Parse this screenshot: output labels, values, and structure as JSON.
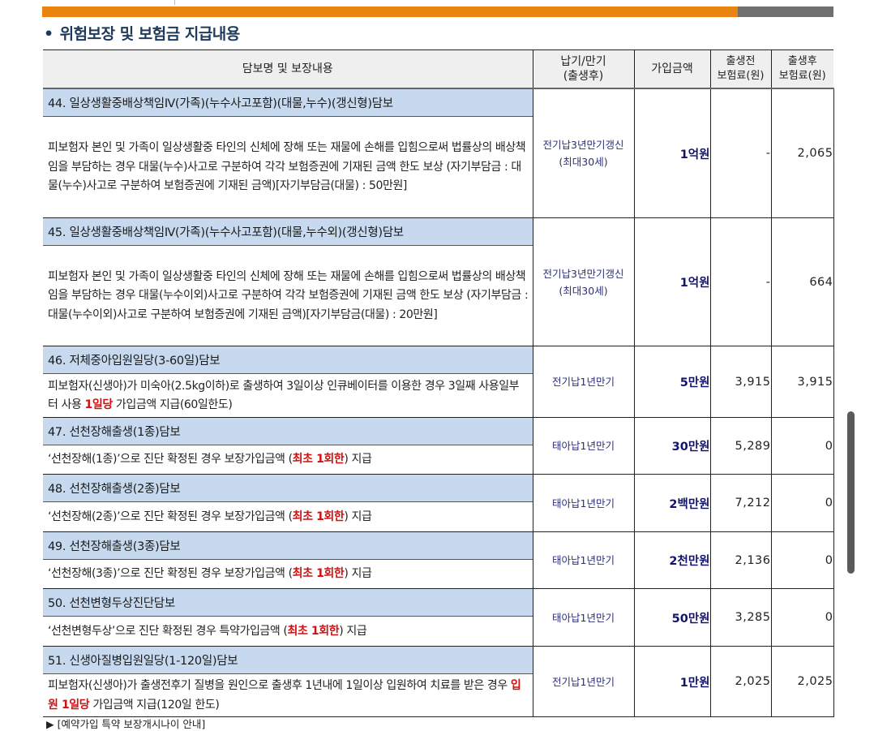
{
  "section_title": "위험보장 및 보험금 지급내용",
  "bullet": "•",
  "colors": {
    "accent_orange": "#e8840f",
    "bar_gray": "#6f6f6f",
    "name_row_bg": "#c7d9ee",
    "header_bg": "#efefef",
    "amount_text": "#12146b",
    "term_text": "#2b2f7a",
    "highlight_red": "#d01010"
  },
  "table": {
    "headers": {
      "coverage": "담보명 및 보장내용",
      "term_line1": "납기/만기",
      "term_line2": "(출생후)",
      "amount": "가입금액",
      "pre_birth_line1": "출생전",
      "pre_birth_line2": "보험료(원)",
      "post_birth_line1": "출생후",
      "post_birth_line2": "보험료(원)"
    },
    "rows": [
      {
        "name": "44. 일상생활중배상책임Ⅳ(가족)(누수사고포함)(대물,누수)(갱신형)담보",
        "desc_pre": "피보험자 본인 및 가족이 일상생활중 타인의 신체에 장해 또는 재물에 손해를 입힘으로써 법률상의 배상책임을 부담하는 경우 대물(누수)사고로 구분하여 각각 보험증권에 기재된 금액 한도 보상 (자기부담금 : 대물(누수)사고로 구분하여 보험증권에 기재된 금액)[자기부담금(대물) : 50만원]",
        "desc_red": "",
        "desc_post": "",
        "term_line1": "전기납3년만기갱신",
        "term_line2": "(최대30세)",
        "amount": "1억원",
        "pre_birth": "-",
        "post_birth": "2,065"
      },
      {
        "name": "45. 일상생활중배상책임Ⅳ(가족)(누수사고포함)(대물,누수외)(갱신형)담보",
        "desc_pre": "피보험자 본인 및 가족이 일상생활중 타인의 신체에 장해 또는 재물에 손해를 입힘으로써 법률상의 배상책임을 부담하는 경우 대물(누수이외)사고로 구분하여 각각 보험증권에 기재된 금액 한도 보상 (자기부담금 : 대물(누수이외)사고로 구분하여 보험증권에 기재된 금액)[자기부담금(대물) : 20만원]",
        "desc_red": "",
        "desc_post": "",
        "term_line1": "전기납3년만기갱신",
        "term_line2": "(최대30세)",
        "amount": "1억원",
        "pre_birth": "-",
        "post_birth": "664"
      },
      {
        "name": "46. 저체중아입원일당(3-60일)담보",
        "desc_pre": "피보험자(신생아)가 미숙아(2.5kg이하)로 출생하여 3일이상 인큐베이터를 이용한 경우 3일째 사용일부터 사용 ",
        "desc_red": "1일당",
        "desc_post": " 가입금액 지급(60일한도)",
        "term_line1": "전기납1년만기",
        "term_line2": "",
        "amount": "5만원",
        "pre_birth": "3,915",
        "post_birth": "3,915"
      },
      {
        "name": "47. 선천장해출생(1종)담보",
        "desc_pre": "‘선천장해(1종)’으로 진단 확정된 경우 보장가입금액 (",
        "desc_red": "최초 1회한",
        "desc_post": ") 지급",
        "term_line1": "태아납1년만기",
        "term_line2": "",
        "amount": "30만원",
        "pre_birth": "5,289",
        "post_birth": "0"
      },
      {
        "name": "48. 선천장해출생(2종)담보",
        "desc_pre": "‘선천장해(2종)’으로 진단 확정된 경우 보장가입금액 (",
        "desc_red": "최초 1회한",
        "desc_post": ") 지급",
        "term_line1": "태아납1년만기",
        "term_line2": "",
        "amount": "2백만원",
        "pre_birth": "7,212",
        "post_birth": "0"
      },
      {
        "name": "49. 선천장해출생(3종)담보",
        "desc_pre": "‘선천장해(3종)’으로 진단 확정된 경우 보장가입금액 (",
        "desc_red": "최초 1회한",
        "desc_post": ") 지급",
        "term_line1": "태아납1년만기",
        "term_line2": "",
        "amount": "2천만원",
        "pre_birth": "2,136",
        "post_birth": "0"
      },
      {
        "name": "50. 선천변형두상진단담보",
        "desc_pre": "‘선천변형두상’으로 진단 확정된 경우 특약가입금액 (",
        "desc_red": "최초 1회한",
        "desc_post": ") 지급",
        "term_line1": "태아납1년만기",
        "term_line2": "",
        "amount": "50만원",
        "pre_birth": "3,285",
        "post_birth": "0"
      },
      {
        "name": "51. 신생아질병입원일당(1-120일)담보",
        "desc_pre": "피보험자(신생아)가 출생전후기 질병을 원인으로 출생후 1년내에 1일이상 입원하여 치료를 받은 경우 ",
        "desc_red": "입원 1일당",
        "desc_post": " 가입금액 지급(120일 한도)",
        "term_line1": "전기납1년만기",
        "term_line2": "",
        "amount": "1만원",
        "pre_birth": "2,025",
        "post_birth": "2,025"
      }
    ]
  },
  "footnote": "▶ [예약가입 특약 보장개시나이 안내]"
}
